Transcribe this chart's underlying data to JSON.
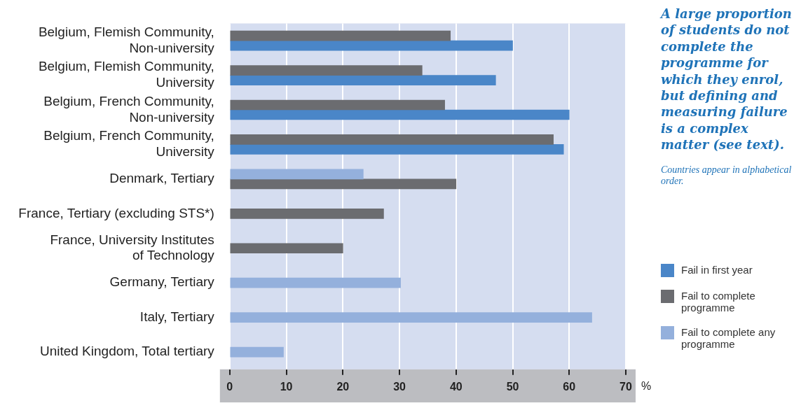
{
  "chart_data": {
    "type": "bar",
    "orientation": "horizontal",
    "title": "A large proportion of students do not complete the programme for which they enrol, but defining and measuring failure is a complex matter (see text).",
    "annotations": [
      "Countries appear in alphabetical order."
    ],
    "xlabel": "%",
    "categories": [
      "Belgium, Flemish Community,\nNon-university",
      "Belgium, Flemish Community,\nUniversity",
      "Belgium, French Community,\nNon-university",
      "Belgium, French Community,\nUniversity",
      "Denmark, Tertiary",
      "France, Tertiary (excluding STS*)",
      "France, University Institutes\nof Technology",
      "Germany, Tertiary",
      "Italy, Tertiary",
      "United Kingdom, Total tertiary"
    ],
    "series": [
      {
        "name": "Fail in first year",
        "color": "#4a86c8",
        "values": [
          50,
          47,
          60,
          59,
          null,
          null,
          null,
          null,
          null,
          null
        ]
      },
      {
        "name": "Fail to complete programme",
        "color": "#6b6c70",
        "values": [
          39,
          34,
          38,
          57.2,
          40,
          27.2,
          20,
          null,
          null,
          null
        ]
      },
      {
        "name": "Fail to complete any programme",
        "color": "#94b0dc",
        "values": [
          null,
          null,
          null,
          null,
          23.6,
          null,
          null,
          30.2,
          64,
          9.5
        ]
      }
    ],
    "xlim": [
      0,
      70
    ],
    "xticks": [
      0,
      10,
      20,
      30,
      40,
      50,
      60,
      70
    ],
    "grid": "x",
    "legend": "right"
  }
}
